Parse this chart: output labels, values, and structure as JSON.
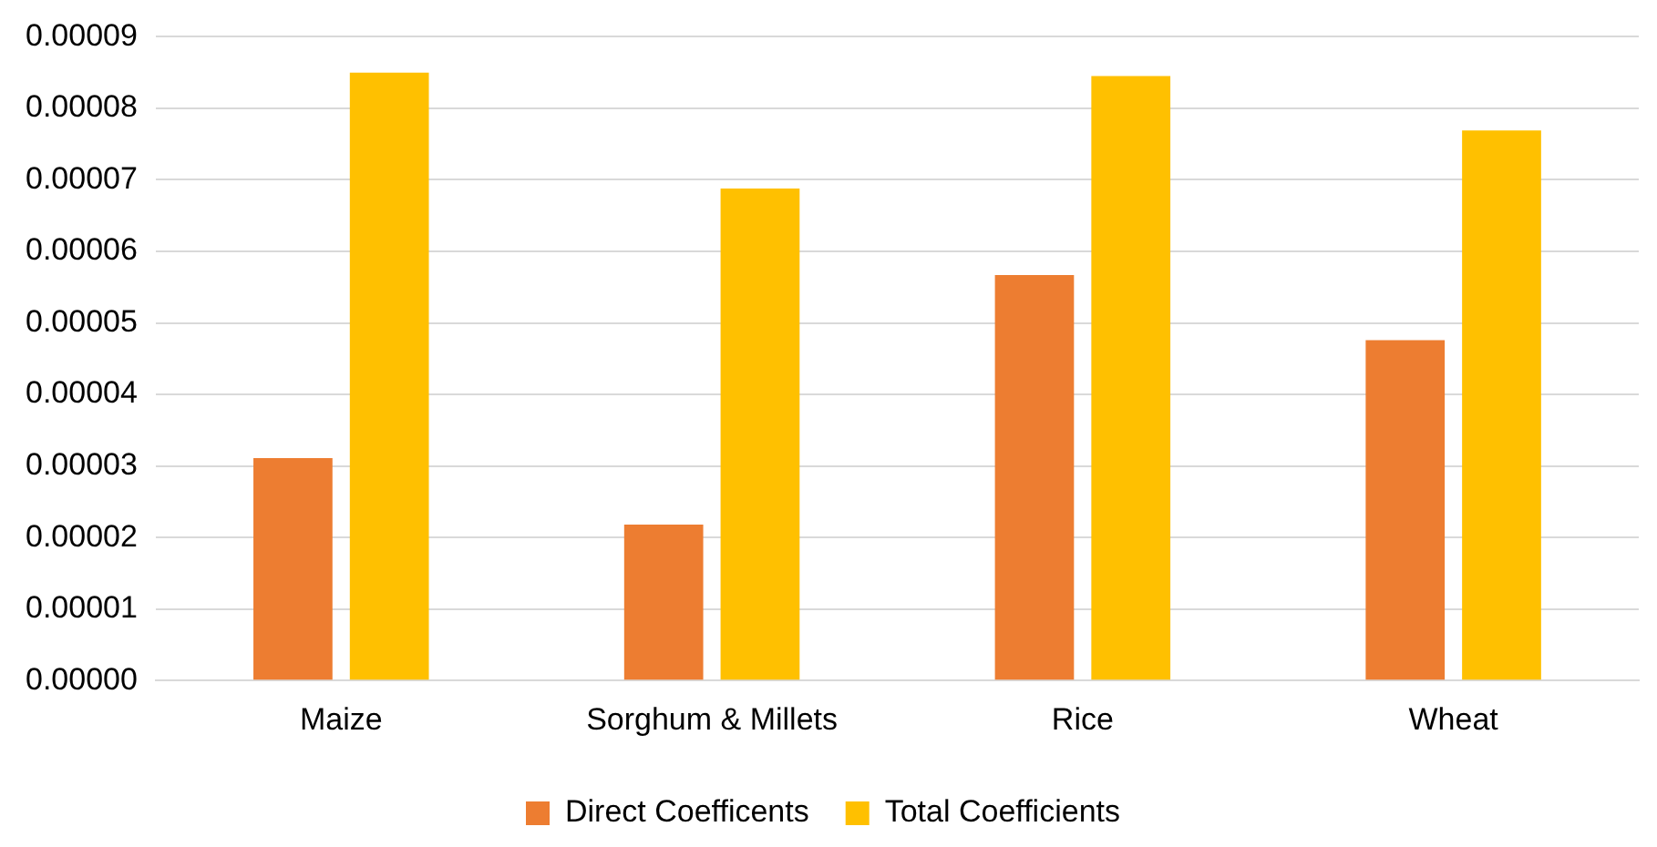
{
  "chart_data": {
    "type": "bar",
    "categories": [
      "Maize",
      "Sorghum & Millets",
      "Rice",
      "Wheat"
    ],
    "series": [
      {
        "name": "Direct Coefficents",
        "color": "#ed7d31",
        "values": [
          3.11e-05,
          2.18e-05,
          5.67e-05,
          4.76e-05
        ]
      },
      {
        "name": "Total Coefficients",
        "color": "#ffc000",
        "values": [
          8.5e-05,
          6.88e-05,
          8.45e-05,
          7.69e-05
        ]
      }
    ],
    "ylim": [
      0,
      9e-05
    ],
    "yticks": [
      {
        "value": 0,
        "label": "0.00000"
      },
      {
        "value": 1e-05,
        "label": "0.00001"
      },
      {
        "value": 2e-05,
        "label": "0.00002"
      },
      {
        "value": 3e-05,
        "label": "0.00003"
      },
      {
        "value": 4e-05,
        "label": "0.00004"
      },
      {
        "value": 5e-05,
        "label": "0.00005"
      },
      {
        "value": 6e-05,
        "label": "0.00006"
      },
      {
        "value": 7e-05,
        "label": "0.00007"
      },
      {
        "value": 8e-05,
        "label": "0.00008"
      },
      {
        "value": 9e-05,
        "label": "0.00009"
      }
    ],
    "grid": "y",
    "legend": "bottom"
  }
}
